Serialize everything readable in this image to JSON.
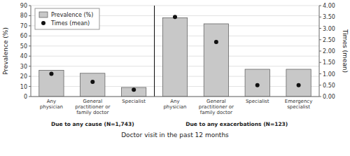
{
  "chart_data": {
    "type": "bar",
    "categories": [
      "Any\nphysician",
      "General\npractitioner or\nfamily doctor",
      "Specialist",
      "Any\nphysician",
      "General\npractitioner or\nfamily doctor",
      "Specialist",
      "Emergency\nspecialist"
    ],
    "series": [
      {
        "name": "Prevalence (%)",
        "type": "bar",
        "color": "#c8c8c8",
        "values": [
          26,
          23,
          9,
          78,
          72,
          27,
          27
        ]
      },
      {
        "name": "Times (mean)",
        "type": "scatter",
        "marker": "circle",
        "color": "#111111",
        "axis": "y2",
        "values": [
          1.0,
          0.65,
          0.3,
          3.5,
          2.4,
          0.5,
          0.5
        ]
      }
    ],
    "xlabel": "Doctor visit in the past 12 months",
    "ylabel": "Prevalence (%)",
    "y2label": "Times (mean)",
    "ylim": [
      0,
      90
    ],
    "yticks": [
      0,
      10,
      20,
      30,
      40,
      50,
      60,
      70,
      80,
      90
    ],
    "y2lim": [
      0,
      4.0
    ],
    "y2ticks": [
      {
        "value": 0,
        "label": "0.00"
      },
      {
        "value": 0.5,
        "label": "0.50"
      },
      {
        "value": 1,
        "label": "1.00"
      },
      {
        "value": 1.5,
        "label": "1.50"
      },
      {
        "value": 2,
        "label": "2.00"
      },
      {
        "value": 2.5,
        "label": "2.50"
      },
      {
        "value": 3,
        "label": "3.00"
      },
      {
        "value": 3.5,
        "label": "3.50"
      },
      {
        "value": 4,
        "label": "4.00"
      }
    ],
    "groups": [
      {
        "label": "Due to any cause (N=1,743)",
        "indices": [
          0,
          1,
          2
        ]
      },
      {
        "label": "Due to any exacerbations (N=123)",
        "indices": [
          3,
          4,
          5,
          6
        ]
      }
    ],
    "grid": true,
    "legend": "upper left"
  }
}
